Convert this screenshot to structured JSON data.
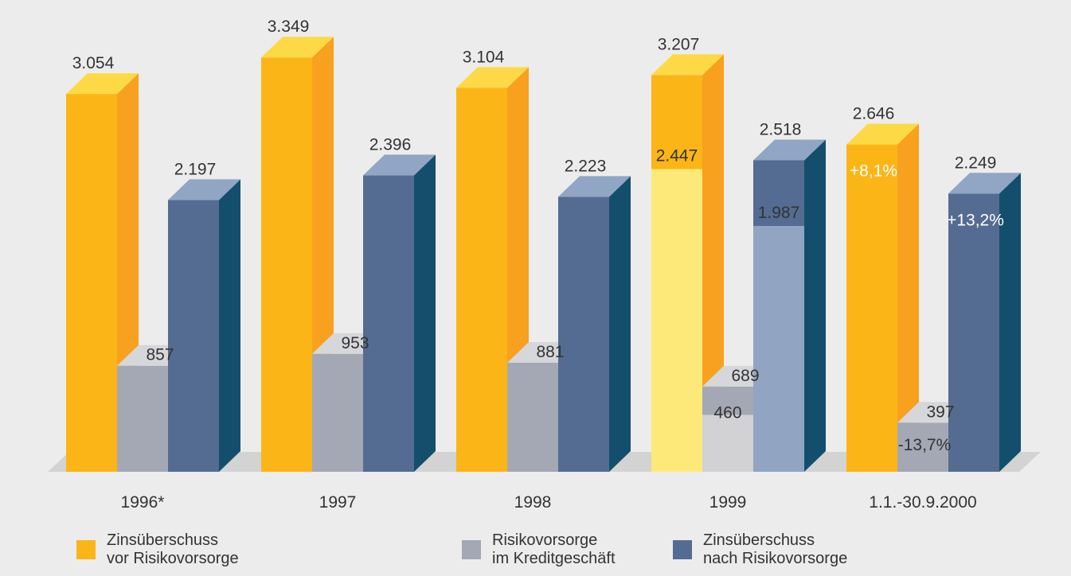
{
  "chart_data": {
    "type": "bar3d",
    "categories": [
      "1996*",
      "1997",
      "1998",
      "1999",
      "1.1.-30.9.2000"
    ],
    "series": [
      {
        "name": "Zinsüberschuss\nvor Risikovorsorge",
        "color": "#fbb517",
        "side_color": "#f7a11f",
        "top_color": "#fdd946",
        "values": [
          3054,
          3349,
          3104,
          3207,
          2646
        ],
        "value_labels": [
          "3.054",
          "3.349",
          "3.104",
          "3.207",
          "2.646"
        ],
        "comparison_color": "#fde97a",
        "comparison_values": [
          null,
          null,
          null,
          2447,
          null
        ],
        "comparison_labels": [
          null,
          null,
          null,
          "2.447",
          null
        ],
        "change_label": "+8,1%"
      },
      {
        "name": "Risikovorsorge\nim Kreditgeschäft",
        "color": "#a3a8b4",
        "side_color": "#8d93a0",
        "top_color": "#d6d7da",
        "values": [
          857,
          953,
          881,
          689,
          397
        ],
        "value_labels": [
          "857",
          "953",
          "881",
          "689",
          "397"
        ],
        "comparison_color": "#d2d2d4",
        "comparison_values": [
          null,
          null,
          null,
          460,
          null
        ],
        "comparison_labels": [
          null,
          null,
          null,
          "460",
          null
        ],
        "change_label": "-13,7%"
      },
      {
        "name": "Zinsüberschuss\nnach Risikovorsorge",
        "color": "#546c91",
        "side_color": "#134f6d",
        "top_color": "#91a5c4",
        "values": [
          2197,
          2396,
          2223,
          2518,
          2249
        ],
        "value_labels": [
          "2.197",
          "2.396",
          "2.223",
          "2.518",
          "2.249"
        ],
        "comparison_color": "#91a5c2",
        "comparison_values": [
          null,
          null,
          null,
          1987,
          null
        ],
        "comparison_labels": [
          null,
          null,
          null,
          "1.987",
          null
        ],
        "change_label": "+13,2%"
      }
    ]
  }
}
